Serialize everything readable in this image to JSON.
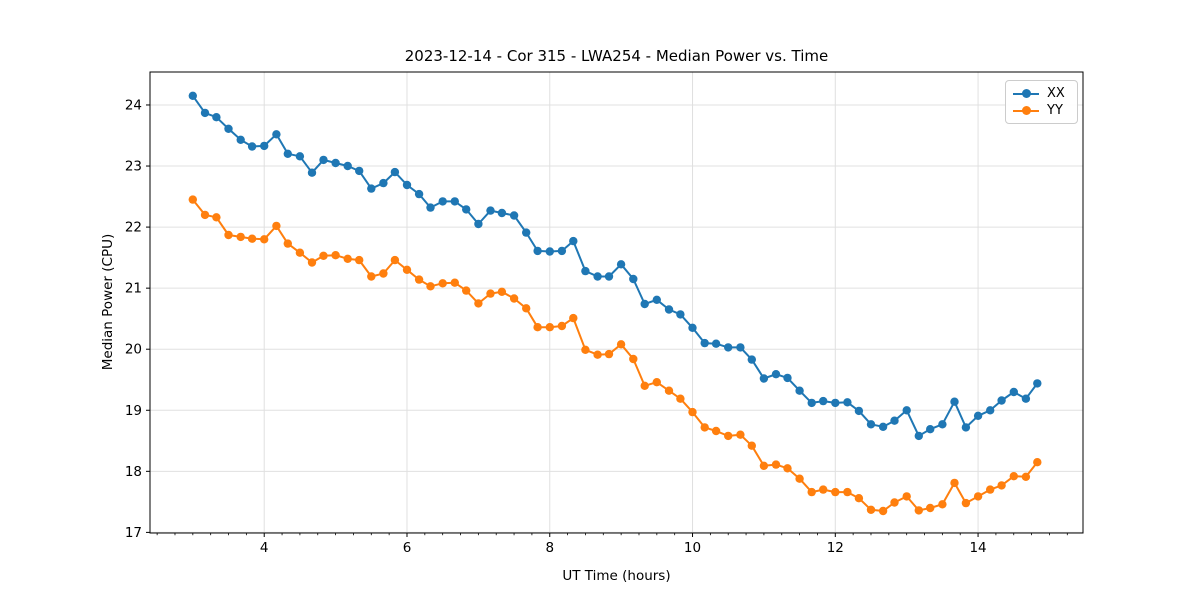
{
  "chart_data": {
    "type": "line",
    "title": "2023-12-14 - Cor 315 - LWA254 - Median Power vs. Time",
    "xlabel": "UT Time (hours)",
    "ylabel": "Median Power (CPU)",
    "xlim": [
      2.4,
      15.47
    ],
    "ylim": [
      16.99,
      24.54
    ],
    "x_ticks": [
      4,
      6,
      8,
      10,
      12,
      14
    ],
    "y_ticks": [
      17,
      18,
      19,
      20,
      21,
      22,
      23,
      24
    ],
    "x_minor_tick_step": 0.25,
    "grid": true,
    "legend_position": "upper right",
    "colors": {
      "grid": "#e0e0e0",
      "spine": "#000000",
      "text": "#000000",
      "legend_border": "#cccccc"
    },
    "x": [
      3.0,
      3.17,
      3.33,
      3.5,
      3.67,
      3.83,
      4.0,
      4.17,
      4.33,
      4.5,
      4.67,
      4.83,
      5.0,
      5.17,
      5.33,
      5.5,
      5.67,
      5.83,
      6.0,
      6.17,
      6.33,
      6.5,
      6.67,
      6.83,
      7.0,
      7.17,
      7.33,
      7.5,
      7.67,
      7.83,
      8.0,
      8.17,
      8.33,
      8.5,
      8.67,
      8.83,
      9.0,
      9.17,
      9.33,
      9.5,
      9.67,
      9.83,
      10.0,
      10.17,
      10.33,
      10.5,
      10.67,
      10.83,
      11.0,
      11.17,
      11.33,
      11.5,
      11.67,
      11.83,
      12.0,
      12.17,
      12.33,
      12.5,
      12.67,
      12.83,
      13.0,
      13.17,
      13.33,
      13.5,
      13.67,
      13.83,
      14.0,
      14.17,
      14.33,
      14.5,
      14.67,
      14.83
    ],
    "series": [
      {
        "name": "XX",
        "color": "#1f77b4",
        "marker": "circle",
        "values": [
          24.15,
          23.87,
          23.8,
          23.61,
          23.43,
          23.32,
          23.33,
          23.52,
          23.2,
          23.16,
          22.89,
          23.1,
          23.05,
          23.0,
          22.92,
          22.63,
          22.72,
          22.9,
          22.69,
          22.54,
          22.32,
          22.42,
          22.42,
          22.29,
          22.05,
          22.27,
          22.23,
          22.19,
          21.91,
          21.61,
          21.6,
          21.61,
          21.77,
          21.28,
          21.19,
          21.19,
          21.39,
          21.15,
          20.74,
          20.81,
          20.65,
          20.57,
          20.35,
          20.1,
          20.09,
          20.03,
          20.03,
          19.83,
          19.52,
          19.59,
          19.53,
          19.32,
          19.12,
          19.15,
          19.12,
          19.13,
          18.99,
          18.77,
          18.73,
          18.83,
          19.0,
          18.58,
          18.69,
          18.77,
          19.14,
          18.72,
          18.91,
          19.0,
          19.16,
          19.3,
          19.19,
          19.44
        ]
      },
      {
        "name": "YY",
        "color": "#ff7f0e",
        "marker": "circle",
        "values": [
          22.45,
          22.2,
          22.16,
          21.87,
          21.84,
          21.81,
          21.8,
          22.02,
          21.73,
          21.58,
          21.42,
          21.53,
          21.54,
          21.48,
          21.46,
          21.19,
          21.24,
          21.46,
          21.3,
          21.14,
          21.03,
          21.08,
          21.09,
          20.96,
          20.75,
          20.91,
          20.94,
          20.83,
          20.67,
          20.36,
          20.36,
          20.38,
          20.51,
          19.99,
          19.91,
          19.92,
          20.08,
          19.84,
          19.4,
          19.46,
          19.32,
          19.19,
          18.97,
          18.72,
          18.66,
          18.58,
          18.6,
          18.42,
          18.09,
          18.11,
          18.05,
          17.88,
          17.66,
          17.7,
          17.66,
          17.66,
          17.56,
          17.37,
          17.35,
          17.49,
          17.59,
          17.36,
          17.4,
          17.46,
          17.81,
          17.48,
          17.59,
          17.7,
          17.77,
          17.92,
          17.91,
          18.15
        ]
      }
    ]
  }
}
